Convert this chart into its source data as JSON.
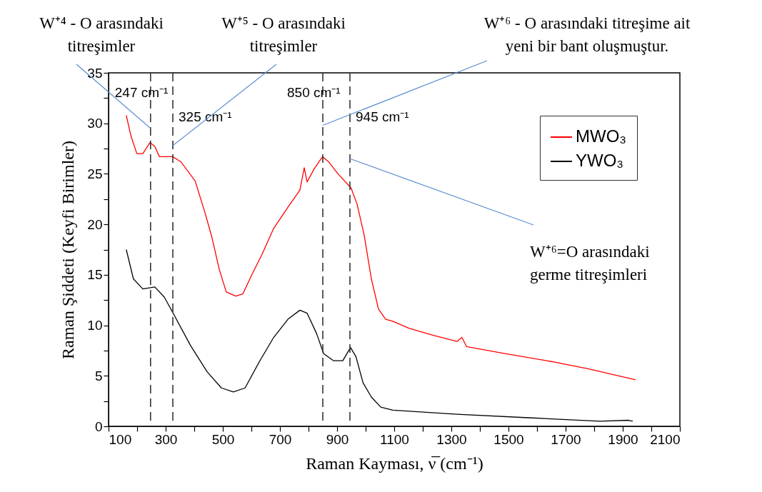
{
  "chart_data": {
    "type": "line",
    "xlabel": "Raman Kayması,  ν̅ (cm⁻¹)",
    "ylabel": "Raman Şiddeti (Keyfi Birimler)",
    "xlim": [
      100,
      2100
    ],
    "ylim": [
      0,
      35
    ],
    "xticks": [
      100,
      {
        "value": 200,
        "label": null
      },
      300,
      {
        "value": 400,
        "label": null
      },
      500,
      {
        "value": 600,
        "label": null
      },
      700,
      {
        "value": 800,
        "label": null
      },
      900,
      {
        "value": 1000,
        "label": null
      },
      1100,
      {
        "value": 1200,
        "label": null
      },
      1300,
      {
        "value": 1400,
        "label": null
      },
      1500,
      {
        "value": 1600,
        "label": null
      },
      1700,
      {
        "value": 1800,
        "label": null
      },
      1900,
      {
        "value": 2000,
        "label": null
      },
      2100
    ],
    "yticks": [
      0,
      {
        "value": 2.5,
        "label": null
      },
      5,
      {
        "value": 7.5,
        "label": null
      },
      10,
      {
        "value": 12.5,
        "label": null
      },
      15,
      {
        "value": 17.5,
        "label": null
      },
      20,
      {
        "value": 22.5,
        "label": null
      },
      25,
      {
        "value": 27.5,
        "label": null
      },
      30,
      {
        "value": 32.5,
        "label": null
      },
      35
    ],
    "grid": false,
    "legend": "top right",
    "marker": "none",
    "line_style": "solid",
    "series": [
      {
        "name": "MWO₃",
        "color": "#ff0000",
        "x": [
          162,
          178,
          199,
          220,
          245,
          262,
          278,
          324,
          353,
          403,
          437,
          462,
          487,
          512,
          545,
          570,
          603,
          637,
          678,
          728,
          770,
          785,
          795,
          820,
          849,
          870,
          903,
          949,
          970,
          995,
          1020,
          1045,
          1070,
          1095,
          1153,
          1237,
          1320,
          1337,
          1353,
          1487,
          1653,
          1778,
          1945
        ],
        "values": [
          30.8,
          28.8,
          27.0,
          27.0,
          28.1,
          27.7,
          26.7,
          26.7,
          26.2,
          24.3,
          21.2,
          18.7,
          15.6,
          13.3,
          12.9,
          13.1,
          15.1,
          17.0,
          19.6,
          21.7,
          23.4,
          25.6,
          24.2,
          25.5,
          26.7,
          26.2,
          25.0,
          23.6,
          22.0,
          18.9,
          14.6,
          11.6,
          10.6,
          10.4,
          9.7,
          9.0,
          8.4,
          8.8,
          7.9,
          7.2,
          6.4,
          5.7,
          4.6
        ]
      },
      {
        "name": "YWO₃",
        "color": "#000000",
        "x": [
          162,
          187,
          220,
          262,
          295,
          328,
          387,
          445,
          495,
          537,
          578,
          628,
          678,
          728,
          770,
          795,
          828,
          853,
          887,
          920,
          947,
          966,
          991,
          1020,
          1053,
          1095,
          1320,
          1570,
          1820,
          1920,
          1935
        ],
        "values": [
          17.5,
          14.6,
          13.6,
          13.8,
          12.8,
          11.1,
          8.0,
          5.4,
          3.8,
          3.4,
          3.8,
          6.4,
          8.8,
          10.6,
          11.5,
          11.2,
          9.2,
          7.2,
          6.5,
          6.5,
          7.8,
          6.9,
          4.3,
          2.9,
          1.9,
          1.6,
          1.2,
          0.85,
          0.5,
          0.6,
          0.5
        ]
      }
    ],
    "ref_lines": [
      {
        "axis": "x",
        "value": 247,
        "label": "247 cm⁻¹",
        "color": "#333333",
        "line_style": "dashed"
      },
      {
        "axis": "x",
        "value": 325,
        "label": "325 cm⁻¹",
        "color": "#333333",
        "line_style": "dashed"
      },
      {
        "axis": "x",
        "value": 850,
        "label": "850 cm⁻¹",
        "color": "#333333",
        "line_style": "dashed"
      },
      {
        "axis": "x",
        "value": 945,
        "label": "945 cm⁻¹",
        "color": "#333333",
        "line_style": "dashed"
      }
    ],
    "annotations": [
      {
        "text": "W⁺⁴ - O arasındaki\ntitreşimler",
        "x": 247,
        "y": 29.5
      },
      {
        "text": "W⁺⁵ - O arasındaki\ntitreşimler",
        "x": 325,
        "y": 27.8
      },
      {
        "text": "W⁺⁶ - O arasındaki titreşime ait\nyeni bir bant oluşmuştur.",
        "x": 850,
        "y": 29.8
      },
      {
        "text": "W⁺⁶=O arasındaki\ngerme titreşimleri",
        "x": 945,
        "y": 26.5
      }
    ]
  }
}
